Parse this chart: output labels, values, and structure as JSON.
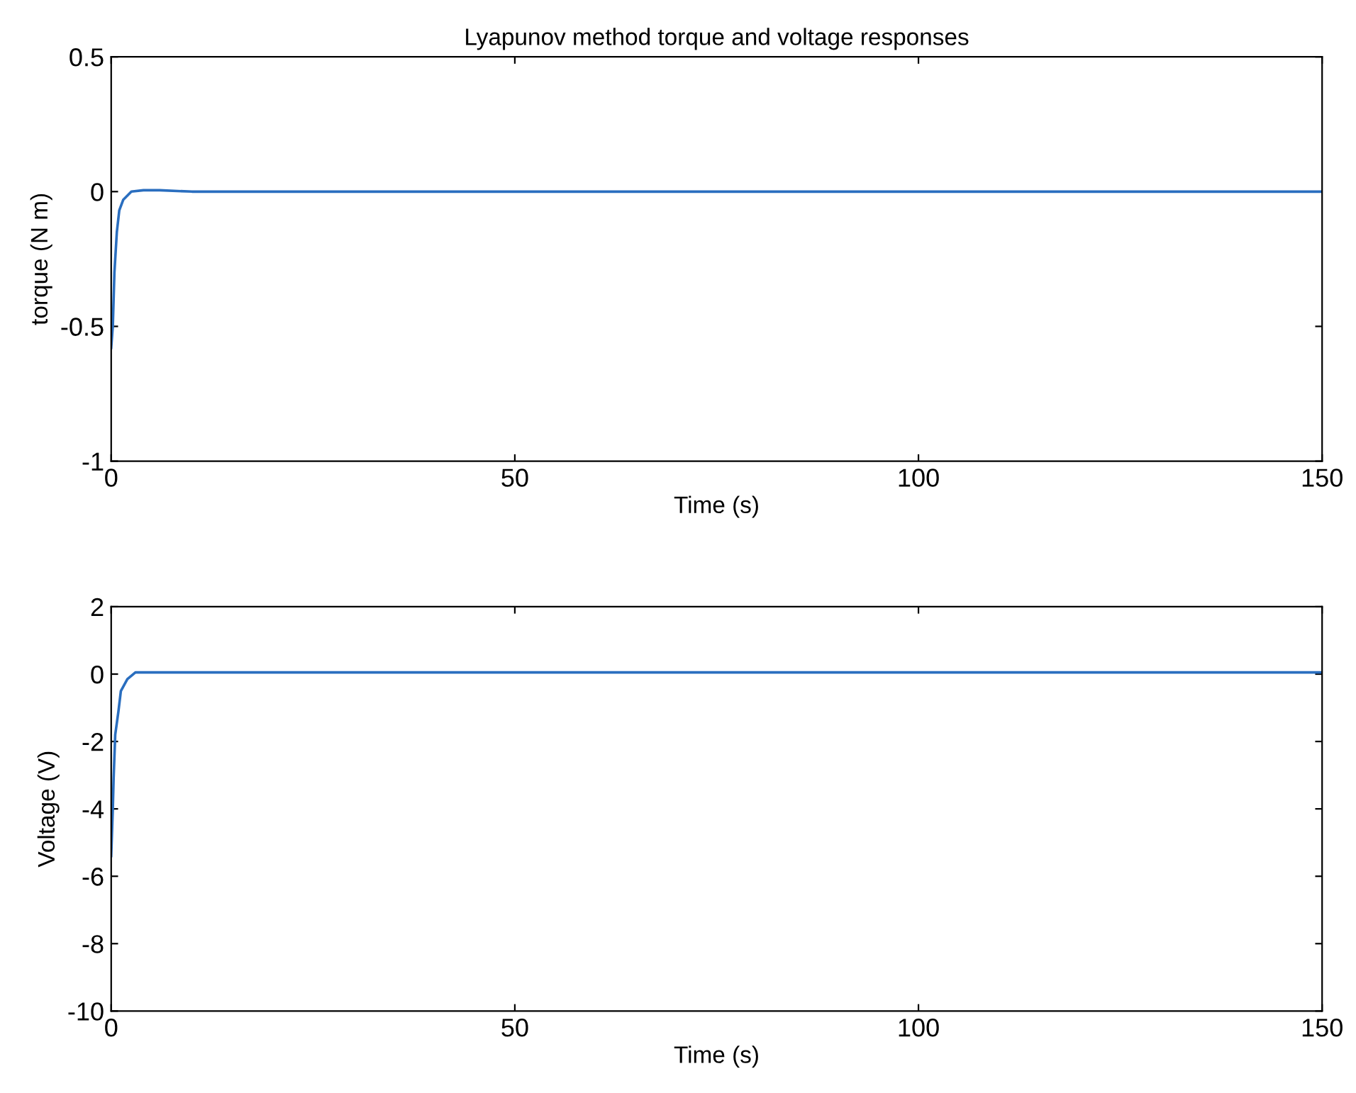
{
  "chart_data": [
    {
      "type": "line",
      "title": "Lyapunov method torque and voltage responses",
      "xlabel": "Time (s)",
      "ylabel": "torque (N m)",
      "xlim": [
        0,
        150
      ],
      "xticks": [
        0,
        50,
        100,
        150
      ],
      "ylim": [
        -1,
        0.5
      ],
      "yticks": [
        -1,
        -0.5,
        0,
        0.5
      ],
      "grid": false,
      "series": [
        {
          "color": "#2a6ebf",
          "x": [
            0,
            0.2,
            0.4,
            0.7,
            1.0,
            1.5,
            2.5,
            4,
            6,
            10,
            150
          ],
          "values": [
            -0.58,
            -0.5,
            -0.3,
            -0.15,
            -0.07,
            -0.03,
            0,
            0.005,
            0.005,
            0,
            0
          ]
        }
      ]
    },
    {
      "type": "line",
      "xlabel": "Time (s)",
      "ylabel": "Voltage (V)",
      "xlim": [
        0,
        150
      ],
      "xticks": [
        0,
        50,
        100,
        150
      ],
      "ylim": [
        -10,
        2
      ],
      "yticks": [
        -10,
        -8,
        -6,
        -4,
        -2,
        0,
        2
      ],
      "grid": false,
      "series": [
        {
          "color": "#2a6ebf",
          "x": [
            0,
            0.2,
            0.3,
            0.5,
            0.9,
            1.2,
            2,
            3,
            5,
            150
          ],
          "values": [
            -5.4,
            -4,
            -3.1,
            -1.8,
            -1.1,
            -0.5,
            -0.15,
            0.05,
            0.05,
            0.05
          ]
        }
      ]
    }
  ]
}
